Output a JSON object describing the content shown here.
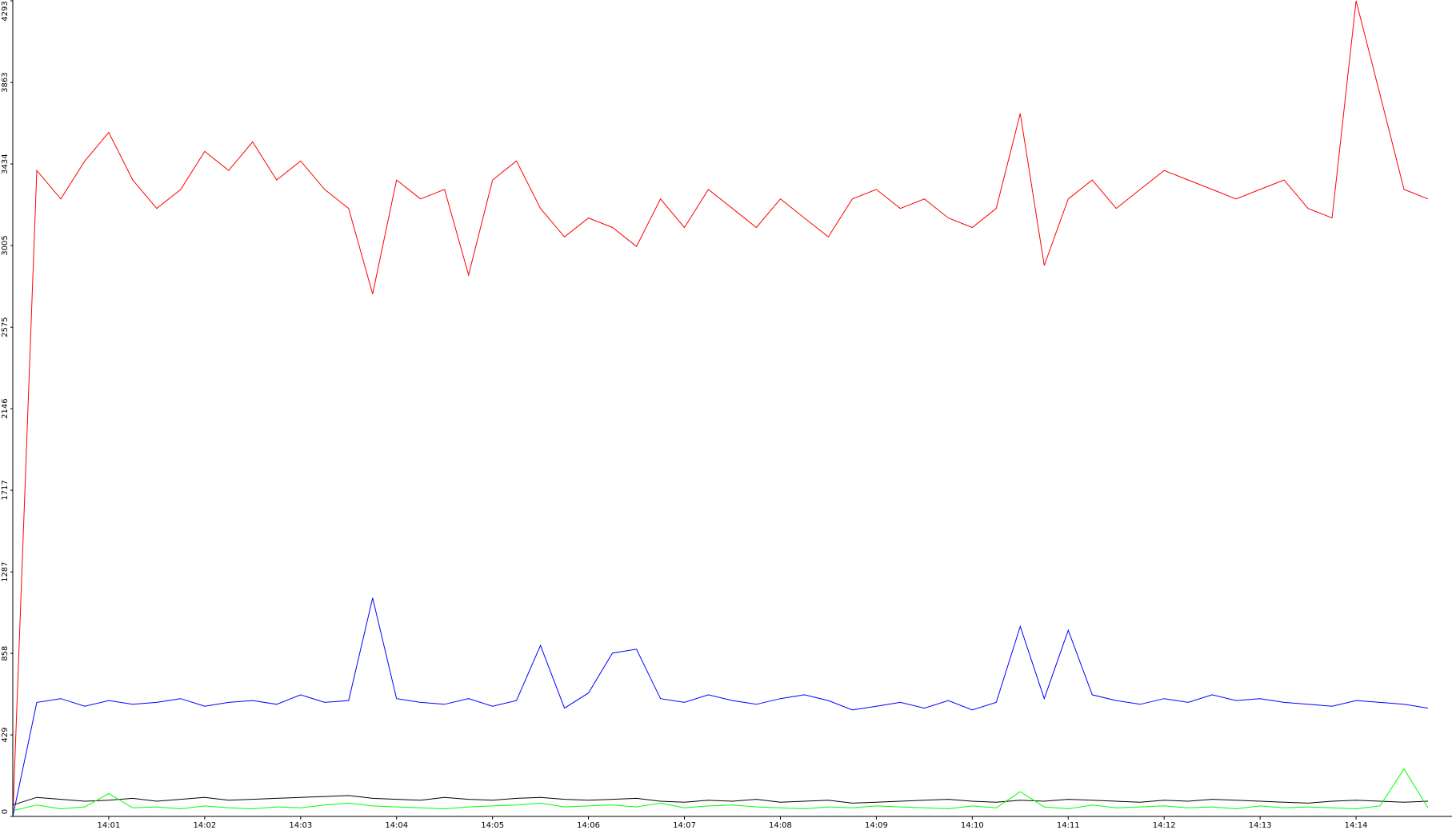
{
  "chart_data": {
    "type": "line",
    "x": [
      0,
      0.25,
      0.5,
      0.75,
      1,
      1.25,
      1.5,
      1.75,
      2,
      2.25,
      2.5,
      2.75,
      3,
      3.25,
      3.5,
      3.75,
      4,
      4.25,
      4.5,
      4.75,
      5,
      5.25,
      5.5,
      5.75,
      6,
      6.25,
      6.5,
      6.75,
      7,
      7.25,
      7.5,
      7.75,
      8,
      8.25,
      8.5,
      8.75,
      9,
      9.25,
      9.5,
      9.75,
      10,
      10.25,
      10.5,
      10.75,
      11,
      11.25,
      11.5,
      11.75,
      12,
      12.25,
      12.5,
      12.75,
      13,
      13.25,
      13.5,
      13.75,
      14,
      14.25,
      14.5,
      14.75
    ],
    "series": [
      {
        "color": "#ff0000",
        "values": [
          0,
          3400,
          3250,
          3450,
          3600,
          3350,
          3200,
          3300,
          3500,
          3400,
          3550,
          3350,
          3450,
          3300,
          3200,
          2750,
          3350,
          3250,
          3300,
          2850,
          3350,
          3450,
          3200,
          3050,
          3150,
          3100,
          3000,
          3250,
          3100,
          3300,
          3200,
          3100,
          3250,
          3150,
          3050,
          3250,
          3300,
          3200,
          3250,
          3150,
          3100,
          3200,
          3700,
          2900,
          3250,
          3350,
          3200,
          3300,
          3400,
          3350,
          3300,
          3250,
          3300,
          3350,
          3200,
          3150,
          4293,
          3800,
          3300,
          3250
        ]
      },
      {
        "color": "#0000ff",
        "values": [
          0,
          600,
          620,
          580,
          610,
          590,
          600,
          620,
          580,
          600,
          610,
          590,
          640,
          600,
          610,
          1150,
          620,
          600,
          590,
          620,
          580,
          610,
          900,
          570,
          650,
          860,
          880,
          620,
          600,
          640,
          610,
          590,
          620,
          640,
          610,
          560,
          580,
          600,
          570,
          610,
          560,
          600,
          1000,
          620,
          980,
          640,
          610,
          590,
          620,
          600,
          640,
          610,
          620,
          600,
          590,
          580,
          610,
          600,
          590,
          570
        ]
      },
      {
        "color": "#000000",
        "values": [
          60,
          100,
          90,
          80,
          85,
          95,
          80,
          90,
          100,
          85,
          90,
          95,
          100,
          105,
          110,
          95,
          90,
          85,
          100,
          90,
          85,
          95,
          100,
          90,
          85,
          90,
          95,
          80,
          75,
          85,
          80,
          90,
          75,
          80,
          85,
          70,
          75,
          80,
          85,
          90,
          80,
          75,
          85,
          80,
          90,
          85,
          80,
          75,
          85,
          80,
          90,
          85,
          80,
          75,
          70,
          80,
          85,
          80,
          75,
          80
        ]
      },
      {
        "color": "#00ff00",
        "values": [
          30,
          60,
          40,
          50,
          120,
          45,
          50,
          40,
          55,
          45,
          40,
          50,
          45,
          60,
          70,
          55,
          50,
          45,
          40,
          50,
          55,
          60,
          70,
          50,
          55,
          60,
          50,
          70,
          45,
          55,
          60,
          50,
          45,
          40,
          50,
          45,
          55,
          50,
          45,
          40,
          55,
          45,
          130,
          50,
          40,
          60,
          45,
          50,
          55,
          45,
          50,
          40,
          55,
          45,
          50,
          45,
          40,
          55,
          250,
          45
        ]
      }
    ],
    "ylim": [
      0,
      4293
    ],
    "yticks": [
      0,
      429,
      858,
      1287,
      1717,
      2146,
      2575,
      3005,
      3434,
      3863,
      4293
    ],
    "xlim": [
      0,
      15
    ],
    "xticks": [
      {
        "value": 1,
        "label": "14:01"
      },
      {
        "value": 2,
        "label": "14:02"
      },
      {
        "value": 3,
        "label": "14:03"
      },
      {
        "value": 4,
        "label": "14:04"
      },
      {
        "value": 5,
        "label": "14:05"
      },
      {
        "value": 6,
        "label": "14:06"
      },
      {
        "value": 7,
        "label": "14:07"
      },
      {
        "value": 8,
        "label": "14:08"
      },
      {
        "value": 9,
        "label": "14:09"
      },
      {
        "value": 10,
        "label": "14:10"
      },
      {
        "value": 11,
        "label": "14:11"
      },
      {
        "value": 12,
        "label": "14:12"
      },
      {
        "value": 13,
        "label": "14:13"
      },
      {
        "value": 14,
        "label": "14:14"
      }
    ]
  }
}
